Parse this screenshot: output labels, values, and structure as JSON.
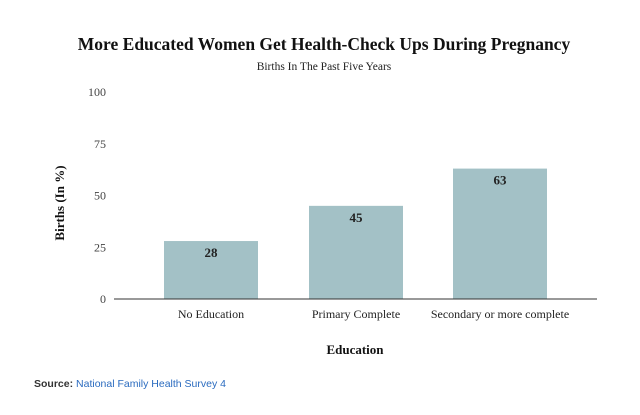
{
  "chart_data": {
    "type": "bar",
    "title": "More Educated Women Get Health-Check Ups During Pregnancy",
    "subtitle": "Births In The Past Five Years",
    "categories": [
      "No Education",
      "Primary Complete",
      "Secondary or more complete"
    ],
    "values": [
      28,
      45,
      63
    ],
    "xlabel": "Education",
    "ylabel": "Births (In %)",
    "ylim": [
      0,
      100
    ],
    "yticks": [
      0,
      25,
      50,
      75,
      100
    ],
    "grid": false,
    "bar_color": "#a3c1c6",
    "axis_color": "#333333"
  },
  "source": {
    "label": "Source:",
    "link_text": "National Family Health Survey 4"
  }
}
